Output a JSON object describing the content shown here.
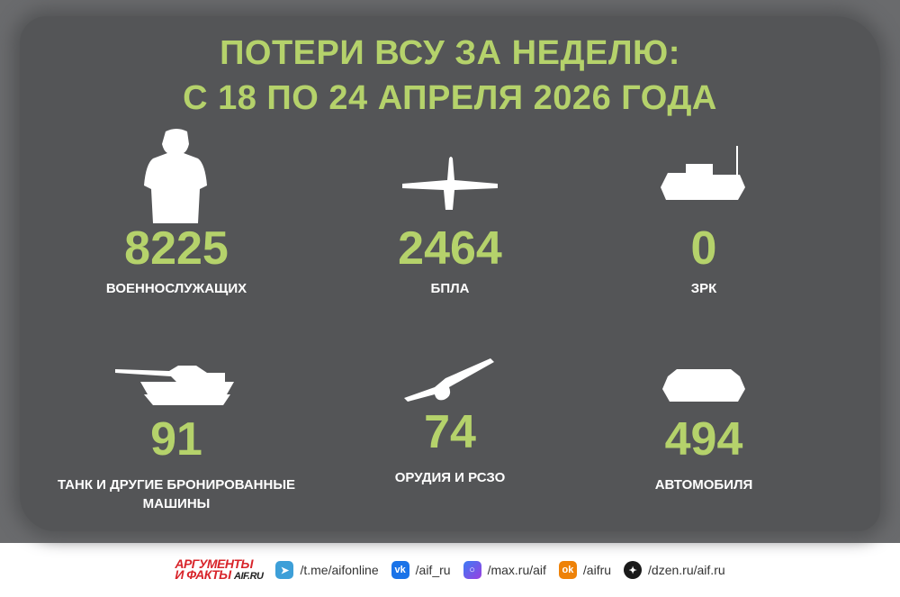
{
  "title": {
    "line1": "ПОТЕРИ ВСУ ЗА НЕДЕЛЮ:",
    "line2": "С 18 ПО 24 АПРЕЛЯ 2026 ГОДА"
  },
  "colors": {
    "accent": "#b5d26b",
    "background": "#545557"
  },
  "stats": [
    {
      "value": "8225",
      "label": "ВОЕННОСЛУЖАЩИХ",
      "icon": "soldier-icon"
    },
    {
      "value": "2464",
      "label": "БПЛА",
      "icon": "drone-icon"
    },
    {
      "value": "0",
      "label": "ЗРК",
      "icon": "air-defense-icon"
    },
    {
      "value": "91",
      "label": "ТАНК И ДРУГИЕ БРОНИРОВАННЫЕ МАШИНЫ",
      "icon": "tank-icon"
    },
    {
      "value": "74",
      "label": "ОРУДИЯ И РСЗО",
      "icon": "artillery-icon"
    },
    {
      "value": "494",
      "label": "АВТОМОБИЛЯ",
      "icon": "armored-vehicle-icon"
    }
  ],
  "footer": {
    "logo": {
      "line1": "АРГУМЕНТЫ",
      "line2": "И ФАКТЫ",
      "site": "AIF.RU"
    },
    "links": [
      {
        "text": "/t.me/aifonline",
        "icon": "telegram-icon",
        "color": "#3d9fd8"
      },
      {
        "text": "/aif_ru",
        "icon": "vk-icon",
        "color": "#1a73e8"
      },
      {
        "text": "/max.ru/aif",
        "icon": "max-icon",
        "color": "#6b4ee6"
      },
      {
        "text": "/aifru",
        "icon": "ok-icon",
        "color": "#ee8208"
      },
      {
        "text": "/dzen.ru/aif.ru",
        "icon": "dzen-icon",
        "color": "#1a1a1a"
      }
    ]
  }
}
